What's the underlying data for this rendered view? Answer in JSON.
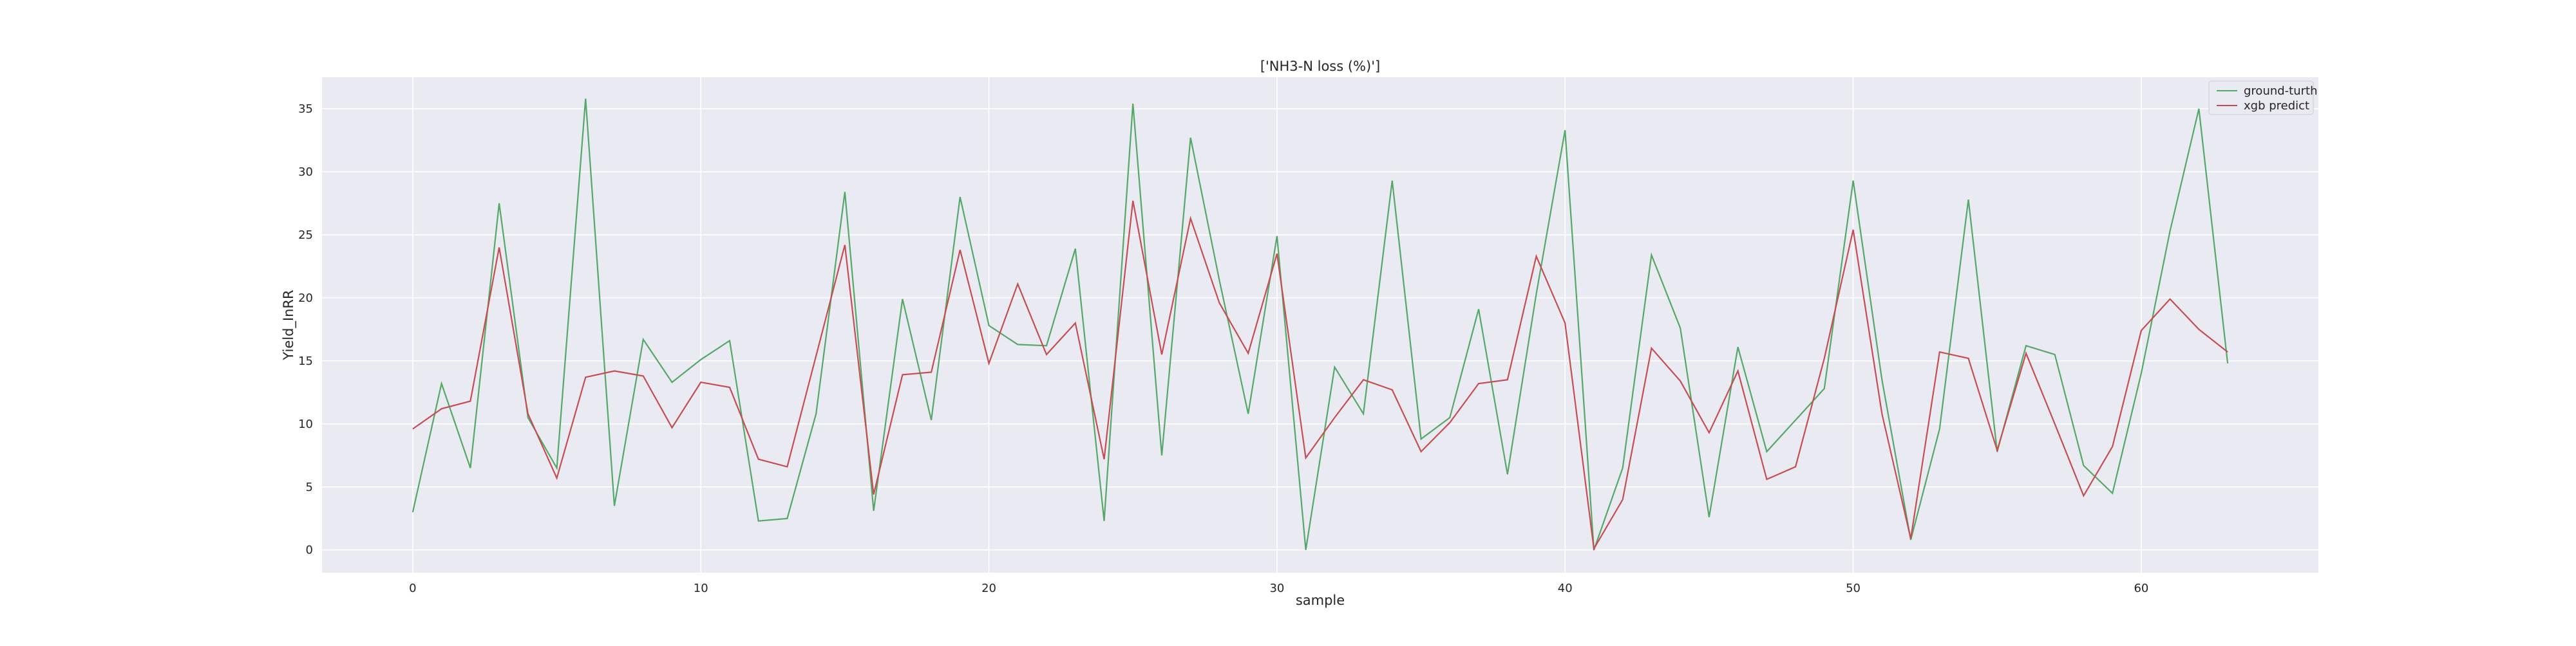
{
  "chart_data": {
    "type": "line",
    "title": "['NH3-N loss (%)']",
    "xlabel": "sample",
    "ylabel": "Yield_InRR",
    "xlim": [
      -3.15,
      66.15
    ],
    "ylim": [
      -1.8,
      37.5
    ],
    "x_ticks": [
      0,
      10,
      20,
      30,
      40,
      50,
      60
    ],
    "y_ticks": [
      0,
      5,
      10,
      15,
      20,
      25,
      30,
      35
    ],
    "grid": true,
    "legend_position": "top-right",
    "background_color": "#EAEAF2",
    "series": [
      {
        "name": "ground-turth",
        "color": "#55A868",
        "values": [
          3.0,
          13.2,
          6.5,
          27.5,
          10.5,
          6.5,
          35.8,
          3.5,
          16.7,
          13.3,
          15.1,
          16.6,
          2.3,
          2.5,
          10.8,
          28.4,
          3.1,
          19.9,
          10.3,
          28.0,
          17.8,
          16.3,
          16.2,
          23.9,
          2.3,
          35.4,
          7.5,
          32.7,
          21.4,
          10.8,
          24.9,
          0.0,
          14.5,
          10.8,
          29.3,
          8.8,
          10.5,
          19.1,
          6.0,
          20.3,
          33.3,
          0.0,
          6.5,
          23.4,
          17.6,
          2.6,
          16.1,
          7.8,
          10.3,
          12.8,
          29.3,
          13.5,
          0.8,
          9.6,
          27.8,
          7.8,
          16.2,
          15.5,
          6.7,
          4.5,
          14.0,
          25.3,
          35.0,
          14.8
        ]
      },
      {
        "name": "xgb predict",
        "color": "#C44E52",
        "values": [
          9.6,
          11.2,
          11.8,
          24.0,
          10.8,
          5.7,
          13.7,
          14.2,
          13.8,
          9.7,
          13.3,
          12.9,
          7.2,
          6.6,
          15.4,
          24.2,
          4.4,
          13.9,
          14.1,
          23.8,
          14.8,
          21.1,
          15.5,
          18.0,
          7.2,
          27.7,
          15.5,
          26.3,
          19.6,
          15.6,
          23.5,
          7.3,
          10.5,
          13.5,
          12.7,
          7.8,
          10.1,
          13.2,
          13.5,
          23.3,
          18.0,
          0.1,
          4.0,
          16.0,
          13.4,
          9.3,
          14.2,
          5.6,
          6.6,
          15.2,
          25.4,
          10.8,
          0.9,
          15.7,
          15.2,
          7.9,
          15.6,
          10.0,
          4.3,
          8.2,
          17.4,
          19.9,
          17.5,
          15.7
        ]
      }
    ]
  }
}
